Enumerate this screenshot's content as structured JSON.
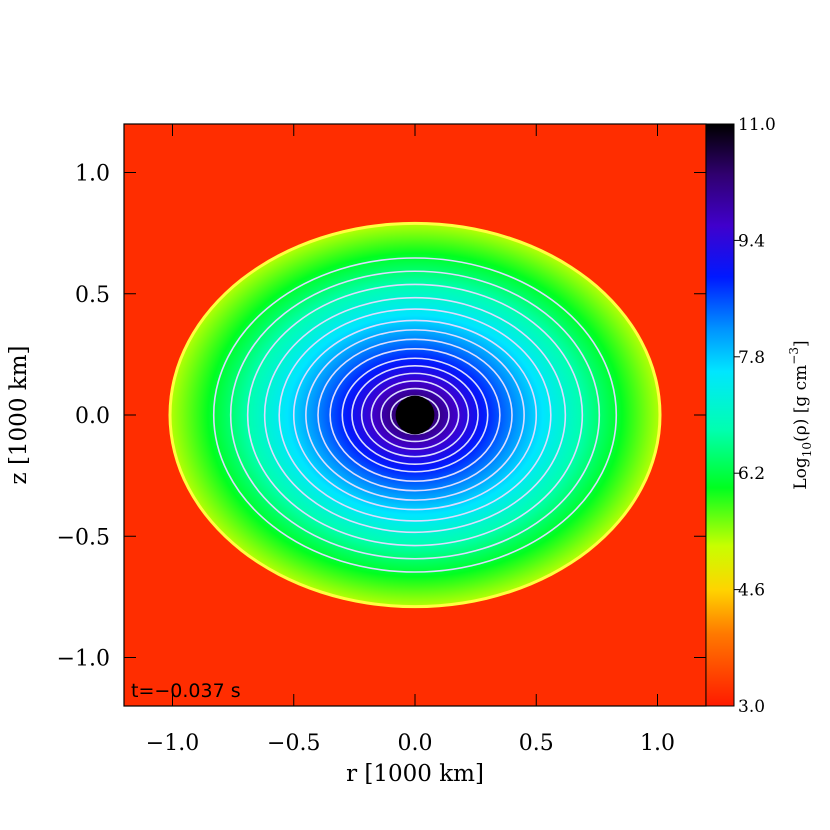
{
  "chart_data": {
    "type": "heatmap",
    "title": "",
    "xlabel": "r [1000 km]",
    "ylabel": "z [1000 km]",
    "xlim": [
      -1.2,
      1.2
    ],
    "ylim": [
      -1.2,
      1.2
    ],
    "xticks": [
      -1.0,
      -0.5,
      0.0,
      0.5,
      1.0
    ],
    "xtick_labels": [
      "−1.0",
      "−0.5",
      "0.0",
      "0.5",
      "1.0"
    ],
    "yticks": [
      -1.0,
      -0.5,
      0.0,
      0.5,
      1.0
    ],
    "ytick_labels": [
      "−1.0",
      "−0.5",
      "0.0",
      "0.5",
      "1.0"
    ],
    "grid": false,
    "annotation": "t=−0.037 s",
    "colorbar": {
      "label_prefix": "Log",
      "label_sub": "10",
      "label_var": "(ρ) [g cm",
      "label_sup": "−3",
      "label_suffix": "]",
      "range": [
        3.0,
        11.0
      ],
      "ticks": [
        3.0,
        4.6,
        6.2,
        7.8,
        9.4,
        11.0
      ],
      "tick_labels": [
        "3.0",
        "4.6",
        "6.2",
        "7.8",
        "9.4",
        "11.0"
      ],
      "colormap_stops": [
        {
          "value": 3.0,
          "color": "#ff1a00"
        },
        {
          "value": 4.0,
          "color": "#ff7a00"
        },
        {
          "value": 4.6,
          "color": "#ffd400"
        },
        {
          "value": 5.2,
          "color": "#c8ff00"
        },
        {
          "value": 6.0,
          "color": "#00ff20"
        },
        {
          "value": 6.8,
          "color": "#00ffb0"
        },
        {
          "value": 7.6,
          "color": "#00e6ff"
        },
        {
          "value": 8.2,
          "color": "#0090ff"
        },
        {
          "value": 8.9,
          "color": "#0018ff"
        },
        {
          "value": 9.6,
          "color": "#4000cc"
        },
        {
          "value": 10.3,
          "color": "#300070"
        },
        {
          "value": 11.0,
          "color": "#000000"
        }
      ]
    },
    "background_log_rho": 3.2,
    "star": {
      "semi_axis_r": 1.0,
      "semi_axis_z": 0.78,
      "edge_log_rho": 5.3,
      "core_radius": 0.08,
      "core_log_rho": 11.0,
      "contour_color": "#dcdcff",
      "contour_levels": [
        0.83,
        0.76,
        0.69,
        0.62,
        0.56,
        0.5,
        0.45,
        0.4,
        0.35,
        0.3,
        0.26,
        0.22,
        0.18,
        0.14,
        0.1
      ]
    }
  }
}
